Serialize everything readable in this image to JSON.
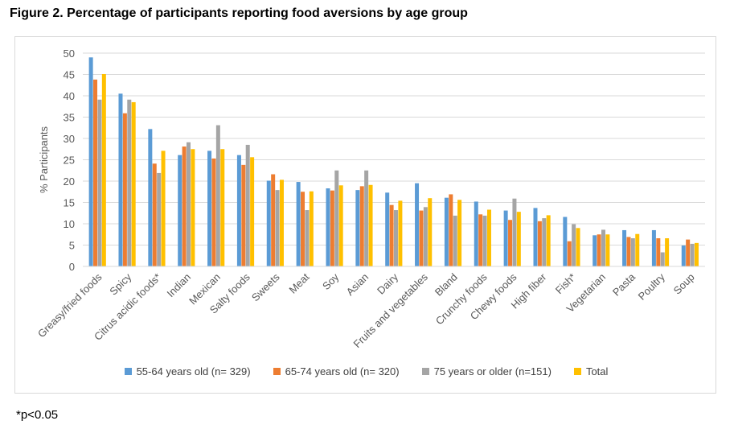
{
  "title": "Figure 2. Percentage of participants reporting food aversions by age group",
  "footnote": "*p<0.05",
  "chart_data": {
    "type": "bar",
    "title": "Figure 2. Percentage of participants reporting food aversions by age group",
    "xlabel": "",
    "ylabel": "% Participants",
    "ylim": [
      0,
      50
    ],
    "yticks": [
      0,
      5,
      10,
      15,
      20,
      25,
      30,
      35,
      40,
      45,
      50
    ],
    "grid": true,
    "legend_position": "bottom",
    "categories": [
      "Greasy/fried foods",
      "Spicy",
      "Citrus acidic foods*",
      "Indian",
      "Mexican",
      "Salty foods",
      "Sweets",
      "Meat",
      "Soy",
      "Asian",
      "Dairy",
      "Fruits and vegetables",
      "Bland",
      "Crunchy foods",
      "Chewy foods",
      "High fiber",
      "Fish*",
      "Vegetarian",
      "Pasta",
      "Poultry",
      "Soup"
    ],
    "series": [
      {
        "name": "55-64 years old (n= 329)",
        "color": "#5b9bd5",
        "values": [
          49,
          40.5,
          32.2,
          26.1,
          27.1,
          26.1,
          20.1,
          19.8,
          18.3,
          17.9,
          17.3,
          19.5,
          16.1,
          15.2,
          13.1,
          13.7,
          11.6,
          7.3,
          8.5,
          8.5,
          4.9
        ]
      },
      {
        "name": "65-74 years old (n= 320)",
        "color": "#ed7d31",
        "values": [
          43.8,
          35.9,
          24.1,
          28.1,
          25.3,
          23.8,
          21.6,
          17.5,
          17.8,
          18.8,
          14.4,
          13.1,
          16.9,
          12.2,
          10.9,
          10.6,
          5.9,
          7.5,
          6.9,
          6.6,
          6.3
        ]
      },
      {
        "name": "75 years or older (n=151)",
        "color": "#a5a5a5",
        "values": [
          39.1,
          39.1,
          21.9,
          29.1,
          33.1,
          28.5,
          17.9,
          13.2,
          22.5,
          22.5,
          13.2,
          13.9,
          11.9,
          11.9,
          15.9,
          11.3,
          9.9,
          8.6,
          6.6,
          3.3,
          5.3
        ]
      },
      {
        "name": "Total",
        "color": "#ffc000",
        "values": [
          45.1,
          38.5,
          27.1,
          27.5,
          27.5,
          25.6,
          20.3,
          17.6,
          19.0,
          19.1,
          15.4,
          16.0,
          15.6,
          13.3,
          12.8,
          12.0,
          9.0,
          7.5,
          7.6,
          6.6,
          5.5
        ]
      }
    ]
  }
}
